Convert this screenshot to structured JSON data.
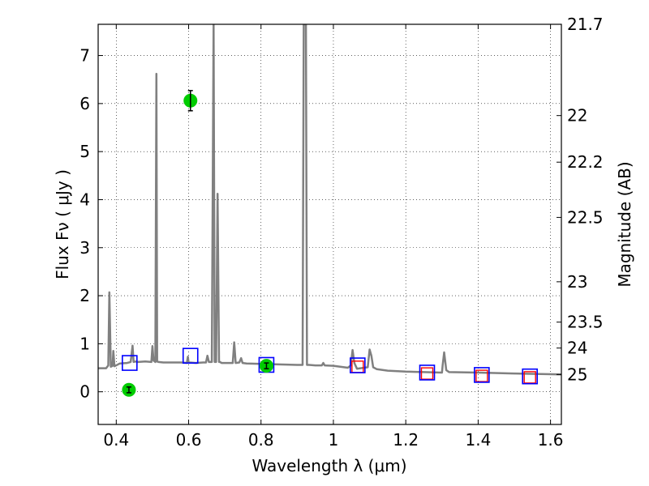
{
  "chart_data": {
    "type": "line",
    "xlabel": "Wavelength  λ (μm)",
    "ylabel": "Flux  Fν  ( μJy )",
    "y2label": "Magnitude (AB)",
    "xlim": [
      0.35,
      1.63
    ],
    "ylim": [
      -0.68,
      7.65
    ],
    "grid": true,
    "x_ticks": [
      0.4,
      0.6,
      0.8,
      1.0,
      1.2,
      1.4,
      1.6
    ],
    "x_tick_labels": [
      "0.4",
      "0.6",
      "0.8",
      "1",
      "1.2",
      "1.4",
      "1.6"
    ],
    "y_ticks": [
      0,
      1,
      2,
      3,
      4,
      5,
      6,
      7
    ],
    "y_tick_labels": [
      "0",
      "1",
      "2",
      "3",
      "4",
      "5",
      "6",
      "7"
    ],
    "y2_ticks": [
      {
        "flux": 7.65,
        "label": "21.7"
      },
      {
        "flux": 5.75,
        "label": "22"
      },
      {
        "flux": 4.78,
        "label": "22.2"
      },
      {
        "flux": 3.63,
        "label": "22.5"
      },
      {
        "flux": 2.29,
        "label": "23"
      },
      {
        "flux": 1.45,
        "label": "23.5"
      },
      {
        "flux": 0.91,
        "label": "24"
      },
      {
        "flux": 0.36,
        "label": "25"
      }
    ],
    "series": [
      {
        "style": "spectrum-line",
        "color": "#808080",
        "x": [
          0.35,
          0.372,
          0.378,
          0.381,
          0.385,
          0.39,
          0.392,
          0.395,
          0.41,
          0.43,
          0.44,
          0.445,
          0.448,
          0.452,
          0.46,
          0.48,
          0.497,
          0.5,
          0.503,
          0.508,
          0.511,
          0.513,
          0.517,
          0.53,
          0.56,
          0.58,
          0.595,
          0.598,
          0.6,
          0.602,
          0.62,
          0.64,
          0.648,
          0.652,
          0.656,
          0.664,
          0.669,
          0.672,
          0.676,
          0.68,
          0.684,
          0.687,
          0.691,
          0.7,
          0.722,
          0.726,
          0.73,
          0.74,
          0.745,
          0.749,
          0.76,
          0.8,
          0.85,
          0.9,
          0.915,
          0.918,
          0.921,
          0.924,
          0.927,
          0.93,
          0.933,
          0.95,
          0.968,
          0.972,
          0.976,
          1.0,
          1.04,
          1.048,
          1.053,
          1.058,
          1.065,
          1.075,
          1.095,
          1.1,
          1.105,
          1.11,
          1.12,
          1.15,
          1.2,
          1.25,
          1.3,
          1.302,
          1.306,
          1.312,
          1.32,
          1.4,
          1.5,
          1.63
        ],
        "values": [
          0.49,
          0.49,
          0.55,
          2.07,
          0.52,
          0.54,
          0.85,
          0.53,
          0.59,
          0.6,
          0.62,
          0.96,
          0.62,
          0.63,
          0.62,
          0.63,
          0.62,
          0.95,
          0.65,
          0.62,
          6.62,
          0.63,
          0.62,
          0.61,
          0.61,
          0.61,
          0.6,
          0.73,
          0.6,
          0.61,
          0.6,
          0.61,
          0.61,
          0.75,
          0.62,
          0.62,
          7.65,
          0.62,
          0.62,
          4.12,
          0.62,
          0.62,
          0.6,
          0.6,
          0.6,
          1.03,
          0.6,
          0.61,
          0.7,
          0.6,
          0.59,
          0.58,
          0.57,
          0.56,
          0.56,
          7.65,
          7.65,
          7.65,
          0.56,
          0.56,
          0.56,
          0.55,
          0.55,
          0.6,
          0.55,
          0.54,
          0.5,
          0.55,
          0.87,
          0.6,
          0.48,
          0.49,
          0.51,
          0.88,
          0.75,
          0.51,
          0.47,
          0.44,
          0.42,
          0.41,
          0.4,
          0.56,
          0.82,
          0.45,
          0.41,
          0.4,
          0.38,
          0.36
        ]
      },
      {
        "style": "blue-open-square",
        "color": "#0000ff",
        "x": [
          0.437,
          0.605,
          0.815,
          1.067,
          1.259,
          1.41,
          1.543
        ],
        "values": [
          0.6,
          0.75,
          0.56,
          0.55,
          0.4,
          0.35,
          0.32
        ]
      },
      {
        "style": "red-open-square",
        "color": "#ff0000",
        "x": [
          1.067,
          1.259,
          1.41,
          1.543
        ],
        "values": [
          0.52,
          0.38,
          0.33,
          0.3
        ]
      },
      {
        "style": "green-filled-circle",
        "color": "#00cc00",
        "x": [
          0.435,
          0.605,
          0.815
        ],
        "values": [
          0.04,
          6.06,
          0.54
        ],
        "errors": [
          0.06,
          0.21,
          0.06
        ]
      }
    ]
  }
}
